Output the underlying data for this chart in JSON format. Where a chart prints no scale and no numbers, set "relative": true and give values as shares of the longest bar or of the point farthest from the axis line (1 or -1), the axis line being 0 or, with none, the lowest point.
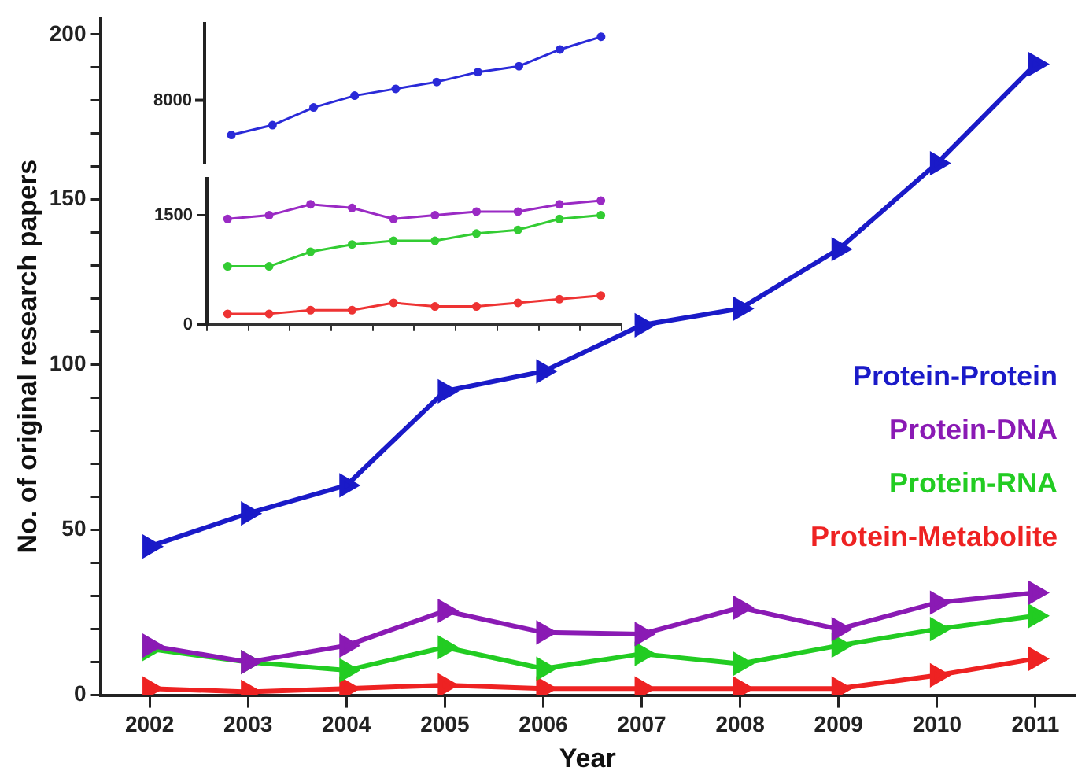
{
  "chart_data": [
    {
      "type": "line",
      "xlabel": "Year",
      "ylabel": "No. of original research papers",
      "x": [
        2002,
        2003,
        2004,
        2005,
        2006,
        2007,
        2008,
        2009,
        2010,
        2011
      ],
      "xlim": [
        2001.5,
        2011.4
      ],
      "xticks": [
        2002,
        2003,
        2004,
        2005,
        2006,
        2007,
        2008,
        2009,
        2010,
        2011
      ],
      "ylim": [
        0,
        205
      ],
      "yticks": [
        0,
        {
          "value": 10,
          "label": null
        },
        {
          "value": 20,
          "label": null
        },
        {
          "value": 30,
          "label": null
        },
        {
          "value": 40,
          "label": null
        },
        50,
        {
          "value": 60,
          "label": null
        },
        {
          "value": 70,
          "label": null
        },
        {
          "value": 80,
          "label": null
        },
        {
          "value": 90,
          "label": null
        },
        100,
        {
          "value": 110,
          "label": null
        },
        {
          "value": 120,
          "label": null
        },
        {
          "value": 130,
          "label": null
        },
        {
          "value": 140,
          "label": null
        },
        150,
        {
          "value": 160,
          "label": null
        },
        {
          "value": 170,
          "label": null
        },
        {
          "value": 180,
          "label": null
        },
        {
          "value": 190,
          "label": null
        },
        200
      ],
      "marker": "triangle",
      "legend": "right",
      "series": [
        {
          "name": "Protein-Protein",
          "color": "#1a1ac8",
          "values": [
            45,
            55,
            63.5,
            92,
            98,
            112,
            117,
            135,
            161,
            191
          ]
        },
        {
          "name": "Protein-DNA",
          "color": "#8a1ab4",
          "values": [
            15,
            10,
            15,
            25.5,
            19,
            18.5,
            26.5,
            20,
            28,
            31
          ]
        },
        {
          "name": "Protein-RNA",
          "color": "#22cc22",
          "values": [
            14,
            10,
            7.5,
            14.5,
            8,
            12.5,
            9.5,
            15,
            20,
            24
          ]
        },
        {
          "name": "Protein-Metabolite",
          "color": "#ee2222",
          "values": [
            2,
            1,
            2,
            3,
            2,
            2,
            2,
            2,
            6,
            11
          ]
        }
      ]
    },
    {
      "type": "line",
      "categories": [
        null,
        null,
        null,
        null,
        null,
        null,
        null,
        null,
        null,
        null
      ],
      "relative": true,
      "annotations": [
        "8000"
      ],
      "tick_labels": "y",
      "marker": "circle",
      "series": [
        {
          "color": "#2a2ad8",
          "values": [
            0,
            0.1,
            0.28,
            0.4,
            0.47,
            0.54,
            0.64,
            0.7,
            0.87,
            1
          ]
        }
      ]
    },
    {
      "type": "line",
      "categories": [
        null,
        null,
        null,
        null,
        null,
        null,
        null,
        null,
        null,
        null
      ],
      "ylim": [
        0,
        2000
      ],
      "yticks": [
        0,
        1500
      ],
      "tick_labels": "y",
      "marker": "circle",
      "series": [
        {
          "color": "#9a2ac4",
          "values": [
            1450,
            1500,
            1650,
            1600,
            1450,
            1500,
            1550,
            1550,
            1650,
            1700
          ]
        },
        {
          "color": "#33cc33",
          "values": [
            800,
            800,
            1000,
            1100,
            1150,
            1150,
            1250,
            1300,
            1450,
            1500
          ]
        },
        {
          "color": "#ee3333",
          "values": [
            150,
            150,
            200,
            200,
            300,
            250,
            250,
            300,
            350,
            400
          ]
        }
      ]
    }
  ]
}
